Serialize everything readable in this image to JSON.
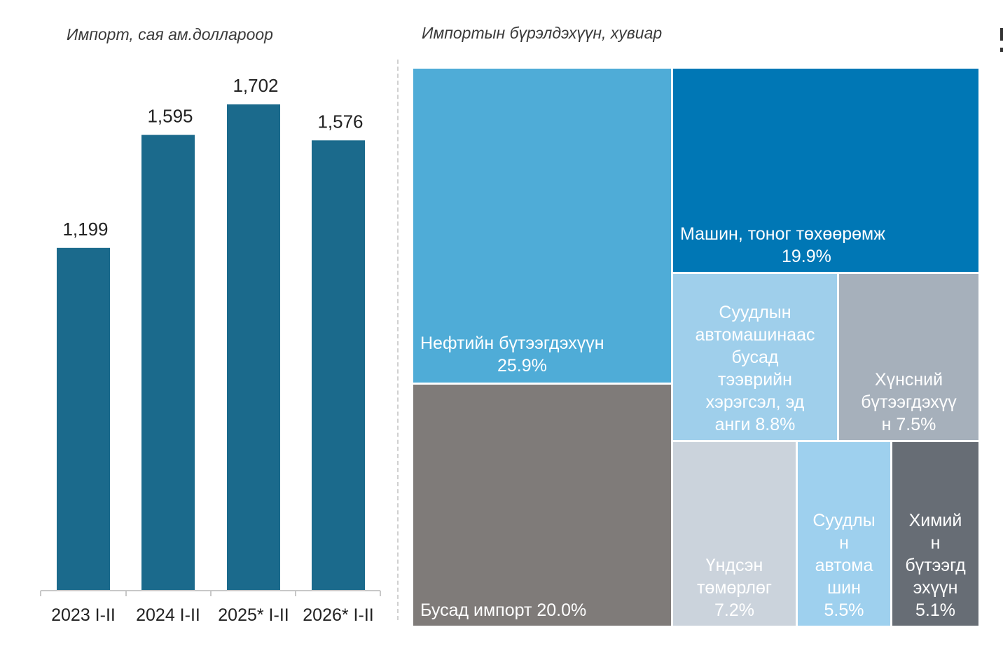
{
  "bar_title": "Импорт,  сая ам.доллароор",
  "treemap_title": "Импортын бүрэлдэхүүн, хувиар",
  "chart_data": [
    {
      "type": "bar",
      "title": "Импорт,  сая ам.доллароор",
      "categories": [
        "2023 I-II",
        "2024 I-II",
        "2025* I-II",
        "2026* I-II"
      ],
      "values": [
        1199,
        1595,
        1702,
        1576
      ],
      "value_labels": [
        "1,199",
        "1,595",
        "1,702",
        "1,576"
      ],
      "ylim": [
        0,
        1702
      ],
      "color": "#1b6a8c",
      "xlabel": "",
      "ylabel": "",
      "grid": false
    },
    {
      "type": "treemap",
      "title": "Импортын бүрэлдэхүүн, хувиар",
      "items": [
        {
          "name": "Нефтийн бүтээгдэхүүн",
          "value": 25.9,
          "label": "25.9%",
          "color": "#4facd7"
        },
        {
          "name": "Машин, тоног төхөөрөмж",
          "value": 19.9,
          "label": "19.9%",
          "color": "#0077b5"
        },
        {
          "name": "Суудлын автомашинаас бусад тээврийн хэрэгсэл, эд анги",
          "value": 8.8,
          "label": "8.8%",
          "color": "#9fcfeb"
        },
        {
          "name": "Хүнсний бүтээгдэхүүн",
          "value": 7.5,
          "label": "7.5%",
          "color": "#a6b0bb"
        },
        {
          "name": "Бусад импорт",
          "value": 20.0,
          "label": "20.0%",
          "color": "#7f7b79"
        },
        {
          "name": "Үндсэн төмөрлөг",
          "value": 7.2,
          "label": "7.2%",
          "color": "#cbd3dc"
        },
        {
          "name": "Суудлын автомашин",
          "value": 5.5,
          "label": "5.5%",
          "color": "#9ed0ee"
        },
        {
          "name": "Химийн бүтээгдэхүүн",
          "value": 5.1,
          "label": "5.1%",
          "color": "#676d75"
        }
      ]
    }
  ],
  "treemap_text": {
    "t0": [
      "Нефтийн бүтээгдэхүүн",
      "25.9%"
    ],
    "t1": [
      "Машин, тоног төхөөрөмж",
      "19.9%"
    ],
    "t2": [
      "Суудлын",
      "автомашинаас",
      "бусад",
      "тээврийн",
      "хэрэгсэл, эд",
      "анги 8.8%"
    ],
    "t3": [
      "Хүнсний",
      "бүтээгдэхүү",
      "н 7.5%"
    ],
    "t4": [
      "Бусад импорт 20.0%"
    ],
    "t5": [
      "Үндсэн",
      "төмөрлөг",
      "7.2%"
    ],
    "t6": [
      "Суудлы",
      "н",
      "автома",
      "шин",
      "5.5%"
    ],
    "t7": [
      "Химий",
      "н",
      "бүтээгд",
      "эхүүн",
      "5.1%"
    ]
  }
}
